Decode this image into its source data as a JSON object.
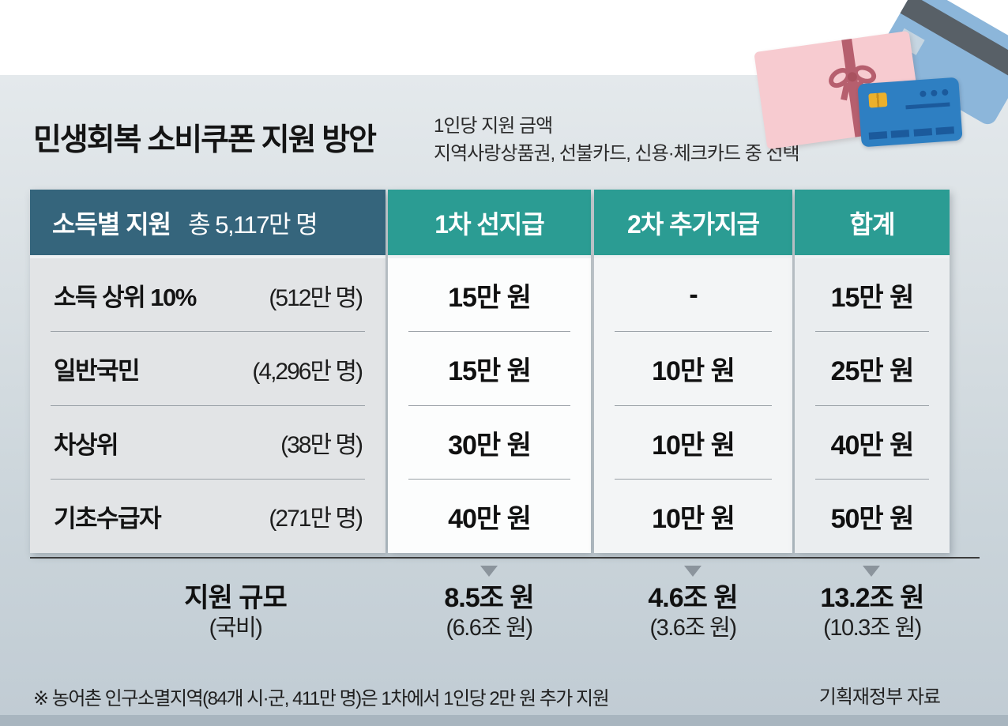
{
  "page": {
    "title": "민생회복 소비쿠폰 지원 방안",
    "subtitle_line1": "1인당 지원 금액",
    "subtitle_line2": "지역사랑상품권, 선불카드, 신용·체크카드 중 선택",
    "footnote": "※ 농어촌 인구소멸지역(84개 시·군, 411만 명)은 1차에서 1인당 2만 원 추가 지원",
    "source": "기획재정부 자료"
  },
  "table": {
    "header": {
      "label_title": "소득별 지원",
      "label_total": "총 5,117만 명",
      "col_first": "1차 선지급",
      "col_second": "2차 추가지급",
      "col_total": "합계"
    },
    "rows": [
      {
        "name": "소득 상위 10%",
        "count": "(512만 명)",
        "first": "15만 원",
        "second": "-",
        "total": "15만 원"
      },
      {
        "name": "일반국민",
        "count": "(4,296만 명)",
        "first": "15만 원",
        "second": "10만 원",
        "total": "25만 원"
      },
      {
        "name": "차상위",
        "count": "(38만 명)",
        "first": "30만 원",
        "second": "10만 원",
        "total": "40만 원"
      },
      {
        "name": "기초수급자",
        "count": "(271만 명)",
        "first": "40만 원",
        "second": "10만 원",
        "total": "50만 원"
      }
    ],
    "footer": {
      "label": "지원 규모",
      "sublabel": "(국비)",
      "first_main": "8.5조 원",
      "first_sub": "(6.6조 원)",
      "second_main": "4.6조 원",
      "second_sub": "(3.6조 원)",
      "total_main": "13.2조 원",
      "total_sub": "(10.3조 원)"
    }
  },
  "colors": {
    "header_dark": "#35657c",
    "header_teal": "#2b9c93",
    "panel_top": "#e4e9ec",
    "panel_bottom": "#c1ccd4",
    "bottom_band": "#a8b5bf",
    "gift_pink": "#f7cbd0",
    "ribbon_pink": "#b65f6e",
    "card_blue": "#2e7fc2",
    "card_light_blue": "#8cb6da",
    "chip_gold": "#ecb02b"
  },
  "chart_data": {
    "type": "table",
    "title": "민생회복 소비쿠폰 지원 방안",
    "subtitle": "1인당 지원 금액 · 지역사랑상품권, 선불카드, 신용·체크카드 중 선택",
    "total_recipients": "총 5,117만 명",
    "columns": [
      "소득별 지원",
      "1차 선지급",
      "2차 추가지급",
      "합계"
    ],
    "rows": [
      [
        "소득 상위 10% (512만 명)",
        "15만 원",
        "-",
        "15만 원"
      ],
      [
        "일반국민 (4,296만 명)",
        "15만 원",
        "10만 원",
        "25만 원"
      ],
      [
        "차상위 (38만 명)",
        "30만 원",
        "10만 원",
        "40만 원"
      ],
      [
        "기초수급자 (271만 명)",
        "40만 원",
        "10만 원",
        "50만 원"
      ]
    ],
    "totals_row": [
      "지원 규모 (국비)",
      "8.5조 원 (6.6조 원)",
      "4.6조 원 (3.6조 원)",
      "13.2조 원 (10.3조 원)"
    ],
    "footnote": "※ 농어촌 인구소멸지역(84개 시·군, 411만 명)은 1차에서 1인당 2만 원 추가 지원",
    "source": "기획재정부 자료"
  }
}
